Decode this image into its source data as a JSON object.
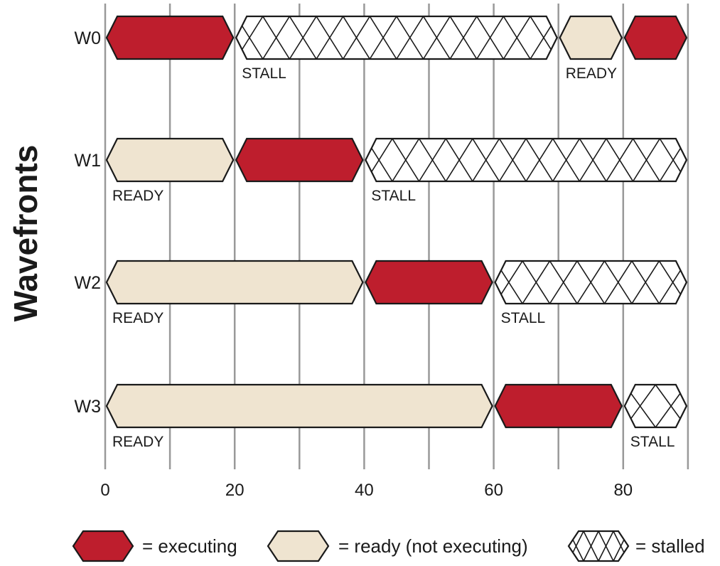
{
  "chart_data": {
    "type": "timeline",
    "ylabel": "Wavefronts",
    "xlim": [
      0,
      90
    ],
    "x_ticks": [
      0,
      20,
      40,
      60,
      80
    ],
    "grid_interval": 10,
    "grid": true,
    "state_labels": {
      "stall": "STALL",
      "ready": "READY"
    },
    "colors": {
      "executing": "#be1e2d",
      "ready": "#efe4d0",
      "stall": "#ffffff",
      "outline": "#1a1a1a",
      "grid": "#999999"
    },
    "wavefronts": [
      {
        "name": "W0",
        "segments": [
          {
            "state": "executing",
            "start": 0,
            "end": 20
          },
          {
            "state": "stall",
            "start": 20,
            "end": 70,
            "label": "STALL"
          },
          {
            "state": "ready",
            "start": 70,
            "end": 80,
            "label": "READY"
          },
          {
            "state": "executing",
            "start": 80,
            "end": 90
          }
        ]
      },
      {
        "name": "W1",
        "segments": [
          {
            "state": "ready",
            "start": 0,
            "end": 20,
            "label": "READY"
          },
          {
            "state": "executing",
            "start": 20,
            "end": 40
          },
          {
            "state": "stall",
            "start": 40,
            "end": 90,
            "label": "STALL"
          }
        ]
      },
      {
        "name": "W2",
        "segments": [
          {
            "state": "ready",
            "start": 0,
            "end": 40,
            "label": "READY"
          },
          {
            "state": "executing",
            "start": 40,
            "end": 60
          },
          {
            "state": "stall",
            "start": 60,
            "end": 90,
            "label": "STALL"
          }
        ]
      },
      {
        "name": "W3",
        "segments": [
          {
            "state": "ready",
            "start": 0,
            "end": 60,
            "label": "READY"
          },
          {
            "state": "executing",
            "start": 60,
            "end": 80
          },
          {
            "state": "stall",
            "start": 80,
            "end": 90,
            "label": "STALL"
          }
        ]
      }
    ],
    "legend": [
      {
        "state": "executing",
        "label": "= executing"
      },
      {
        "state": "ready",
        "label": "= ready (not executing)"
      },
      {
        "state": "stall",
        "label": "= stalled"
      }
    ]
  }
}
